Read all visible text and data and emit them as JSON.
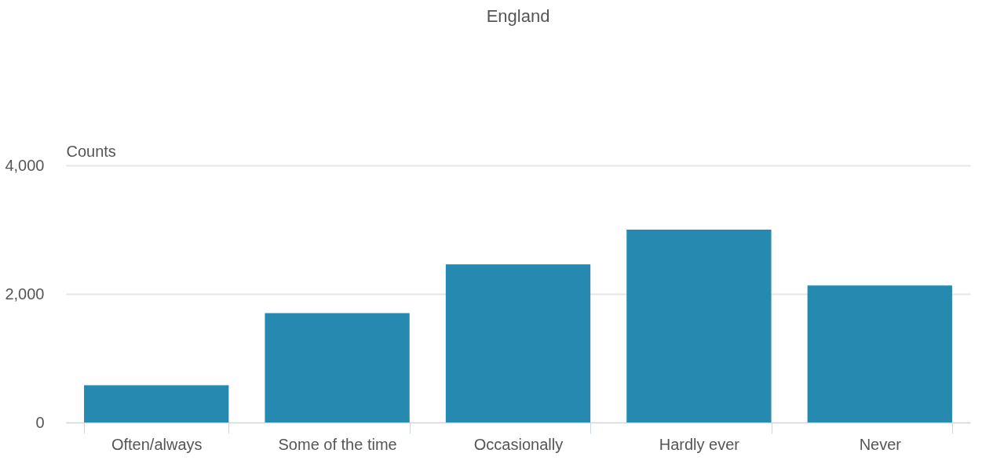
{
  "chart_data": {
    "type": "bar",
    "title": "England",
    "ylabel": "Counts",
    "categories": [
      "Often/always",
      "Some of the time",
      "Occasionally",
      "Hardly ever",
      "Never"
    ],
    "values": [
      580,
      1700,
      2460,
      3000,
      2130
    ],
    "color": "#1a83ab",
    "ylim": [
      0,
      4000
    ],
    "yticks": [
      {
        "value": 0,
        "label": "0"
      },
      {
        "value": 2000,
        "label": "2,000"
      },
      {
        "value": 4000,
        "label": "4,000"
      }
    ],
    "grid": "y"
  }
}
